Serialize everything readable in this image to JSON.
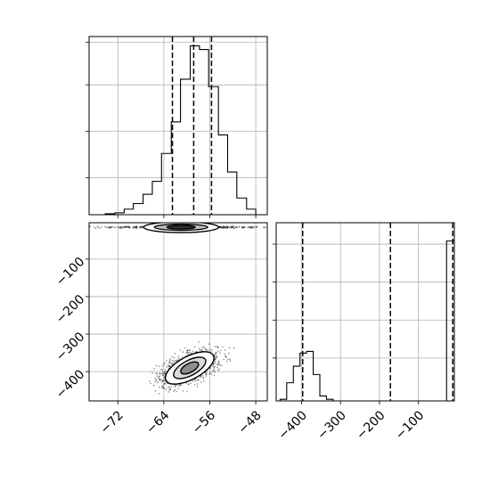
{
  "chart_data": {
    "type": "corner",
    "grid": true,
    "panels": [
      {
        "id": "hist-x",
        "type": "histogram",
        "xlim": [
          -77,
          -46
        ],
        "ylim": [
          0,
          1
        ],
        "quantile_lines": [
          -62.5,
          -58.8,
          -55.7
        ],
        "bin_edges": [
          -74.2,
          -72.5,
          -70.9,
          -69.3,
          -67.6,
          -66.0,
          -64.4,
          -62.7,
          -61.1,
          -59.4,
          -57.8,
          -56.2,
          -54.5,
          -52.9,
          -51.3,
          -49.6,
          -48.0
        ],
        "heights": [
          0.005,
          0.01,
          0.03,
          0.06,
          0.11,
          0.18,
          0.33,
          0.5,
          0.73,
          0.91,
          0.89,
          0.69,
          0.43,
          0.23,
          0.09,
          0.03
        ]
      },
      {
        "id": "scatter-xy",
        "type": "scatter_contour",
        "xlim": [
          -77,
          -46
        ],
        "ylim": [
          -487,
          -475
        ],
        "xticks": [
          "−72",
          "−64",
          "−56",
          "−48"
        ],
        "xtick_values": [
          -72,
          -64,
          -56,
          -48
        ],
        "yticks": [
          "−100",
          "−200",
          "−300",
          "−400"
        ],
        "ytick_values": [
          -100,
          -200,
          -300,
          -400
        ],
        "clusters": [
          {
            "center": [
              -59.5,
              -390
            ],
            "spread": [
              2.4,
              22
            ],
            "corr": 0.55,
            "points": 1500
          },
          {
            "center": [
              -61.0,
              -15
            ],
            "spread": [
              7.5,
              1.5
            ],
            "corr": 0,
            "points": 500
          }
        ]
      },
      {
        "id": "hist-y",
        "type": "histogram",
        "xlim": [
          -465,
          -8
        ],
        "ylim": [
          0,
          1
        ],
        "xticks": [
          "−400",
          "−300",
          "−200",
          "−100"
        ],
        "xtick_values": [
          -400,
          -300,
          -200,
          -100
        ],
        "quantile_lines": [
          -397,
          -172,
          -12
        ],
        "bin_edges": [
          -455,
          -438,
          -421,
          -404,
          -387,
          -370,
          -353,
          -336,
          -319,
          -28,
          -12,
          -5
        ],
        "heights": [
          0.01,
          0.11,
          0.21,
          0.29,
          0.3,
          0.16,
          0.03,
          0.01,
          0,
          0.97,
          0.97
        ]
      }
    ]
  }
}
